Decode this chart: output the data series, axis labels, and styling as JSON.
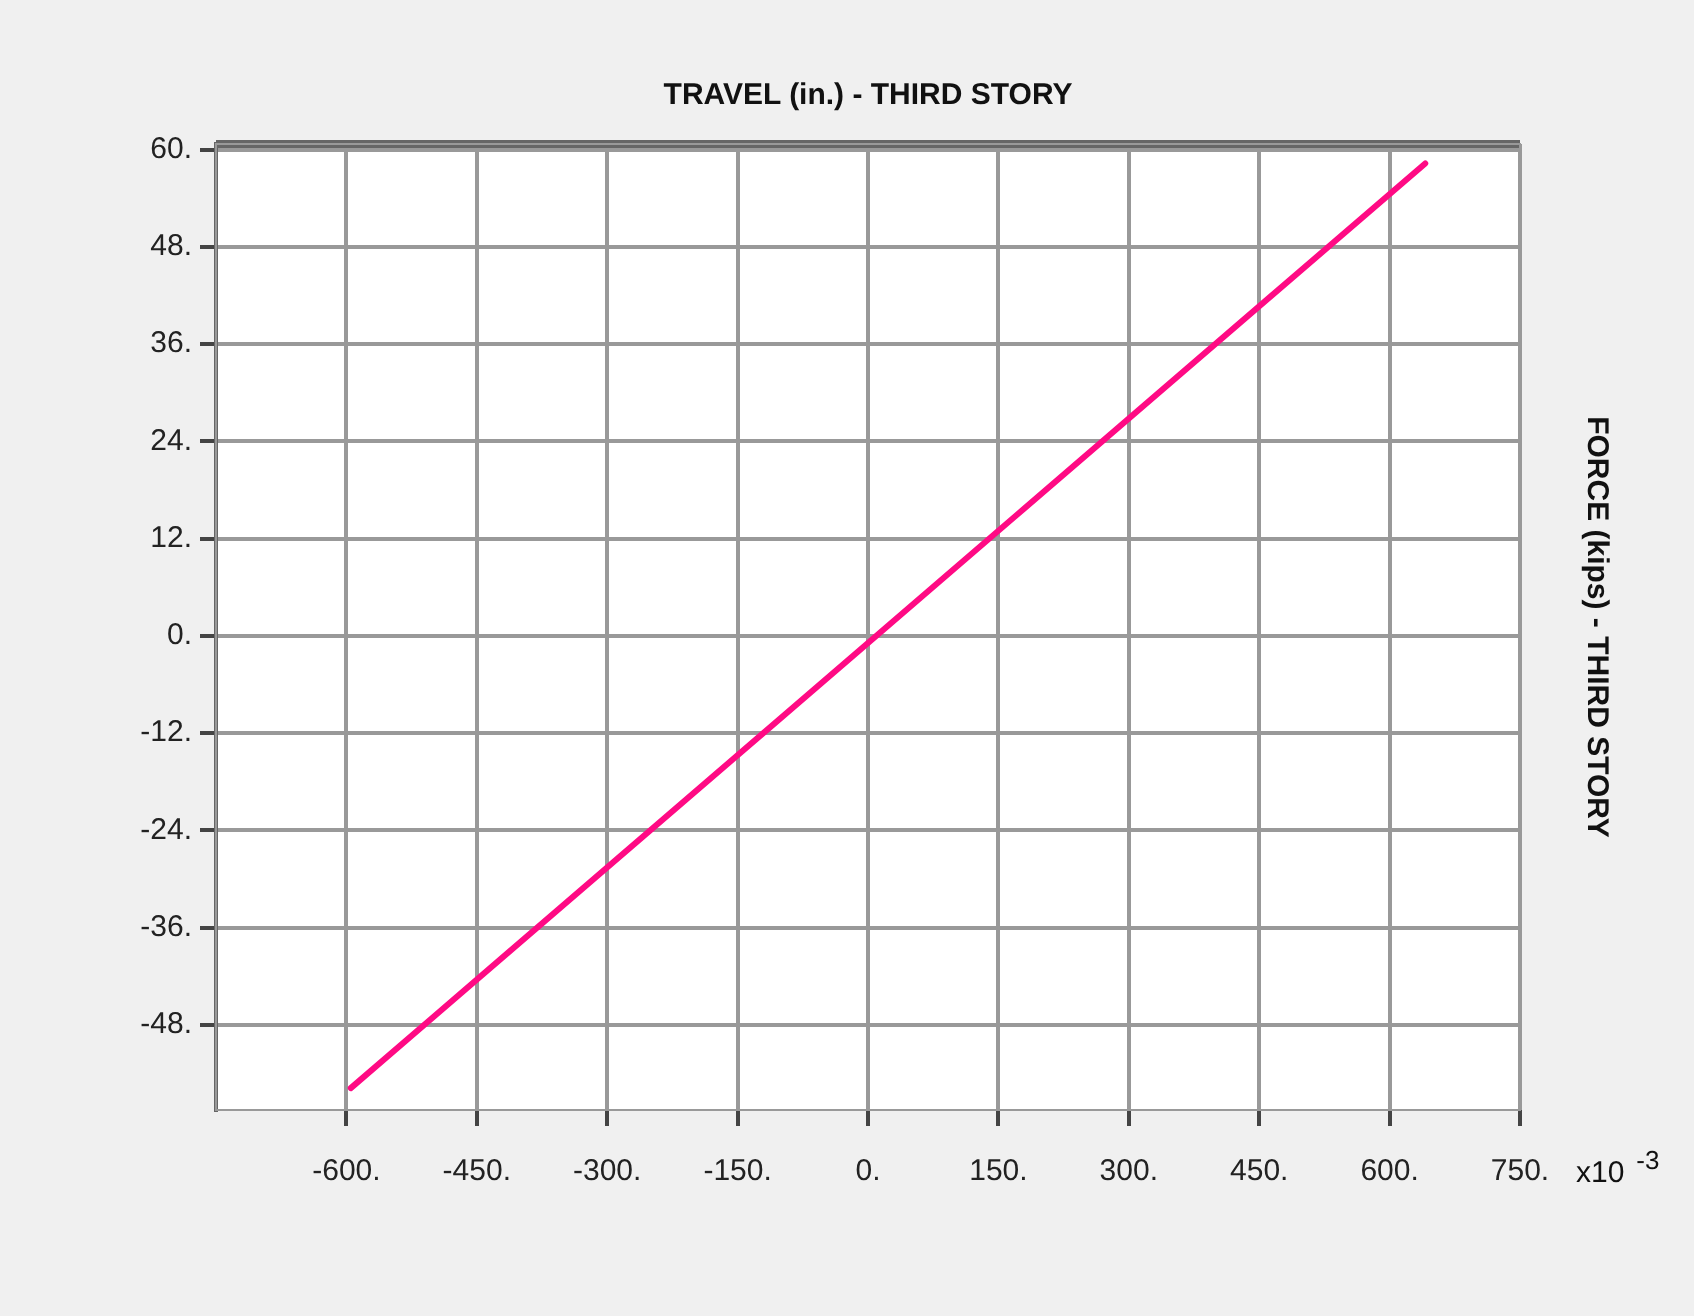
{
  "chart_data": {
    "type": "line",
    "title": "TRAVEL (in.) - THIRD STORY",
    "ylabel": "FORCE (kips) - THIRD STORY",
    "annotations": [
      "x10$^{-3}$"
    ],
    "x": [
      -595,
      641
    ],
    "series": [
      {
        "color": "#ff0a84",
        "values": [
          -55.8,
          58.3
        ]
      }
    ],
    "xlim": [
      -750,
      750
    ],
    "xticks": [
      {
        "value": -600,
        "label": "-600."
      },
      {
        "value": -450,
        "label": "-450."
      },
      {
        "value": -300,
        "label": "-300."
      },
      {
        "value": -150,
        "label": "-150."
      },
      {
        "value": 0,
        "label": "0."
      },
      {
        "value": 150,
        "label": "150."
      },
      {
        "value": 300,
        "label": "300."
      },
      {
        "value": 450,
        "label": "450."
      },
      {
        "value": 600,
        "label": "600."
      },
      {
        "value": 750,
        "label": "750."
      }
    ],
    "ylim": [
      -58.5,
      60.7
    ],
    "yticks": [
      {
        "value": -48,
        "label": "-48."
      },
      {
        "value": -36,
        "label": "-36."
      },
      {
        "value": -24,
        "label": "-24."
      },
      {
        "value": -12,
        "label": "-12."
      },
      {
        "value": 0,
        "label": "0."
      },
      {
        "value": 12,
        "label": "12."
      },
      {
        "value": 24,
        "label": "24."
      },
      {
        "value": 36,
        "label": "36."
      },
      {
        "value": 48,
        "label": "48."
      },
      {
        "value": 60,
        "label": "60."
      }
    ],
    "grid": true,
    "legend": false,
    "marker": "none",
    "line_style": "solid"
  }
}
